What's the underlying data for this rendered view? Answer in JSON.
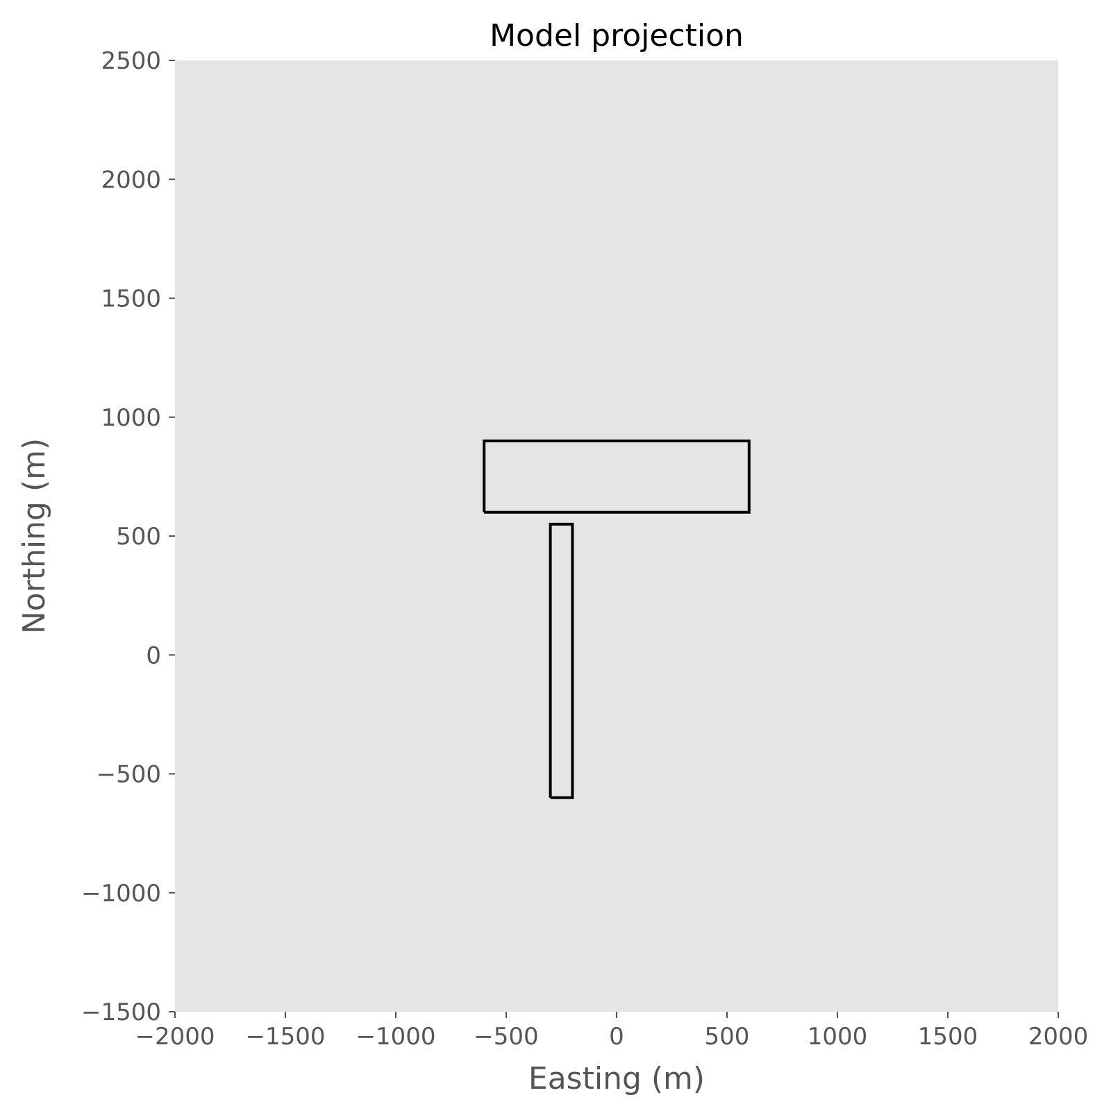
{
  "chart_data": {
    "type": "line",
    "title": "Model projection",
    "xlabel": "Easting (m)",
    "ylabel": "Northing (m)",
    "xlim": [
      -2000,
      2000
    ],
    "ylim": [
      -1500,
      2500
    ],
    "grid": false,
    "background_color": "#e5e5e5",
    "xticks": [
      -2000,
      -1500,
      -1000,
      -500,
      0,
      500,
      1000,
      1500,
      2000
    ],
    "xtick_labels": [
      "−2000",
      "−1500",
      "−1000",
      "−500",
      "0",
      "500",
      "1000",
      "1500",
      "2000"
    ],
    "yticks": [
      -1500,
      -1000,
      -500,
      0,
      500,
      1000,
      1500,
      2000,
      2500
    ],
    "ytick_labels": [
      "−1500",
      "−1000",
      "−500",
      "0",
      "500",
      "1000",
      "1500",
      "2000",
      "2500"
    ],
    "series": [
      {
        "color": "#000000",
        "x": [
          -600,
          600,
          600,
          -600,
          -600
        ],
        "y": [
          600,
          600,
          900,
          900,
          600
        ]
      },
      {
        "color": "#000000",
        "x": [
          -300,
          -200,
          -200,
          -300,
          -300
        ],
        "y": [
          -600,
          -600,
          550,
          550,
          -600
        ]
      }
    ]
  }
}
